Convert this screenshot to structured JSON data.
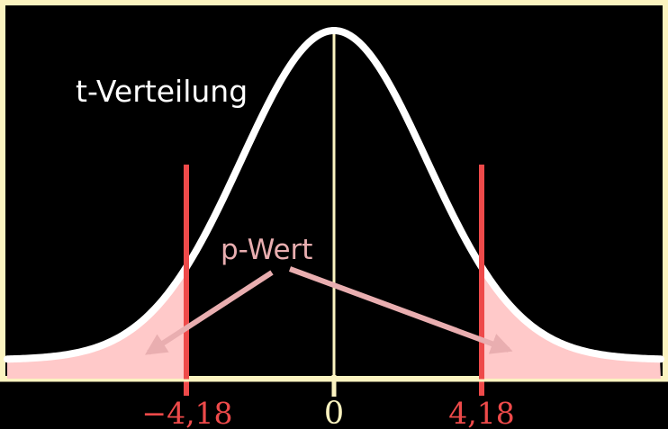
{
  "labels": {
    "distribution": "t-Verteilung",
    "p_value": "p-Wert",
    "tick_left": "−4,18",
    "tick_center": "0",
    "tick_right": "4,18"
  },
  "colors": {
    "frame": "#fbf3c0",
    "curve": "#ffffff",
    "tail_fill": "#ffc9c9",
    "critical_line": "#ee4a4a",
    "tick_label": "#ee4a4a",
    "center_line": "#fbf3c0",
    "arrow": "#e9aeb0",
    "p_label": "#e9aeb0",
    "distribution_label": "#ffffff"
  },
  "chart_data": {
    "type": "area",
    "distribution": "t",
    "critical_values": [
      -4.18,
      4.18
    ],
    "center": 0,
    "shaded_regions": [
      "left-tail",
      "right-tail"
    ]
  }
}
